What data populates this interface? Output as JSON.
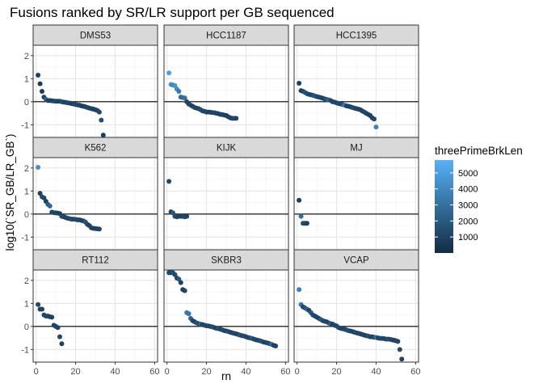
{
  "chart_data": {
    "type": "scatter",
    "title": "Fusions ranked by SR/LR support per GB sequenced",
    "xlabel": "rn",
    "ylabel": "log10(`SR_GB/LR_GB`)",
    "xlim": [
      -1.5,
      61.5
    ],
    "ylim": [
      -1.55,
      2.45
    ],
    "x_ticks": [
      0,
      20,
      40,
      60
    ],
    "y_ticks": [
      -1,
      0,
      1,
      2
    ],
    "hline": 0,
    "grid": true,
    "legend": {
      "title": "threePrimeBrkLen",
      "position": "right",
      "min": 0,
      "max": 5800,
      "breaks": [
        1000,
        2000,
        3000,
        4000,
        5000
      ],
      "color_low": "#132B43",
      "color_high": "#56B1F7"
    },
    "facets": [
      {
        "name": "DMS53",
        "x": [
          1,
          2,
          3,
          4,
          5,
          6,
          7,
          8,
          9,
          10,
          11,
          12,
          13,
          14,
          15,
          16,
          17,
          18,
          19,
          20,
          21,
          22,
          23,
          24,
          25,
          26,
          27,
          28,
          29,
          30,
          31,
          32,
          33,
          34
        ],
        "y": [
          1.15,
          0.78,
          0.45,
          0.2,
          0.1,
          0.05,
          0.05,
          0.04,
          0.03,
          0.02,
          0.02,
          0.02,
          0.0,
          -0.02,
          -0.03,
          -0.05,
          -0.06,
          -0.08,
          -0.1,
          -0.12,
          -0.14,
          -0.15,
          -0.18,
          -0.2,
          -0.22,
          -0.25,
          -0.28,
          -0.3,
          -0.32,
          -0.35,
          -0.38,
          -0.45,
          -0.8,
          -1.45
        ],
        "c": [
          900,
          700,
          800,
          1000,
          2500,
          1100,
          900,
          1000,
          1200,
          1300,
          900,
          1000,
          1500,
          1100,
          1000,
          1200,
          1100,
          900,
          1000,
          1200,
          1300,
          1000,
          1100,
          900,
          1000,
          1200,
          1100,
          1000,
          900,
          1000,
          1100,
          1300,
          1500,
          900
        ]
      },
      {
        "name": "HCC1187",
        "x": [
          1,
          2,
          3,
          4,
          5,
          6,
          7,
          8,
          9,
          10,
          11,
          12,
          13,
          14,
          15,
          16,
          17,
          18,
          19,
          20,
          21,
          22,
          23,
          24,
          25,
          26,
          27,
          28,
          29,
          30,
          31,
          32,
          33,
          34,
          35
        ],
        "y": [
          1.25,
          0.75,
          0.72,
          0.7,
          0.55,
          0.45,
          0.2,
          0.18,
          0.16,
          0.0,
          -0.1,
          -0.15,
          -0.2,
          -0.25,
          -0.28,
          -0.3,
          -0.35,
          -0.4,
          -0.42,
          -0.45,
          -0.45,
          -0.46,
          -0.47,
          -0.48,
          -0.5,
          -0.52,
          -0.55,
          -0.56,
          -0.58,
          -0.6,
          -0.65,
          -0.7,
          -0.72,
          -0.72,
          -0.72
        ],
        "c": [
          5000,
          4600,
          3800,
          4500,
          4200,
          3500,
          2700,
          2800,
          3000,
          1100,
          1000,
          1300,
          900,
          1200,
          1000,
          1100,
          1500,
          1300,
          1000,
          1200,
          900,
          1000,
          1100,
          1300,
          1000,
          1200,
          900,
          1100,
          1000,
          900,
          1000,
          1100,
          1000,
          1200,
          1000
        ]
      },
      {
        "name": "HCC1395",
        "x": [
          1,
          2,
          3,
          4,
          5,
          6,
          7,
          8,
          9,
          10,
          11,
          12,
          13,
          14,
          15,
          16,
          17,
          18,
          19,
          20,
          21,
          22,
          23,
          24,
          25,
          26,
          27,
          28,
          29,
          30,
          31,
          32,
          33,
          34,
          35,
          36,
          37,
          38,
          39,
          40
        ],
        "y": [
          0.8,
          0.48,
          0.45,
          0.4,
          0.35,
          0.32,
          0.3,
          0.28,
          0.25,
          0.22,
          0.2,
          0.18,
          0.15,
          0.12,
          0.1,
          0.08,
          0.05,
          0.0,
          -0.02,
          -0.05,
          -0.08,
          -0.1,
          -0.12,
          -0.15,
          -0.18,
          -0.2,
          -0.22,
          -0.25,
          -0.28,
          -0.3,
          -0.32,
          -0.35,
          -0.4,
          -0.45,
          -0.5,
          -0.55,
          -0.6,
          -0.7,
          -0.75,
          -1.1
        ],
        "c": [
          900,
          1000,
          1200,
          1800,
          1500,
          1300,
          1000,
          1200,
          2000,
          1500,
          1100,
          1300,
          1000,
          1200,
          1800,
          2500,
          1300,
          1000,
          1200,
          1100,
          1300,
          1000,
          1500,
          3500,
          1200,
          1000,
          1100,
          1300,
          1500,
          1000,
          1200,
          1100,
          1000,
          1300,
          1000,
          1100,
          900,
          1000,
          1200,
          3800
        ]
      },
      {
        "name": "K562",
        "x": [
          1,
          2,
          3,
          4,
          5,
          6,
          7,
          8,
          9,
          10,
          11,
          12,
          13,
          14,
          15,
          16,
          17,
          18,
          19,
          20,
          21,
          22,
          23,
          24,
          25,
          26,
          27,
          28,
          29,
          30,
          31,
          32
        ],
        "y": [
          2.03,
          0.9,
          0.75,
          0.7,
          0.55,
          0.42,
          0.35,
          0.08,
          0.06,
          0.05,
          0.04,
          0.02,
          -0.1,
          -0.12,
          -0.15,
          -0.18,
          -0.2,
          -0.22,
          -0.22,
          -0.23,
          -0.25,
          -0.25,
          -0.28,
          -0.3,
          -0.35,
          -0.45,
          -0.5,
          -0.6,
          -0.62,
          -0.63,
          -0.64,
          -0.65
        ],
        "c": [
          4300,
          900,
          1500,
          1200,
          1000,
          2000,
          2500,
          1000,
          1200,
          1100,
          1000,
          900,
          1200,
          1300,
          1000,
          1100,
          1200,
          1300,
          1000,
          1500,
          1200,
          1300,
          1000,
          1100,
          1800,
          1200,
          1000,
          1100,
          1000,
          900,
          1000,
          1100
        ]
      },
      {
        "name": "KIJK",
        "x": [
          1,
          2,
          3,
          4,
          5,
          6,
          7,
          8,
          9,
          10
        ],
        "y": [
          1.42,
          0.1,
          0.05,
          -0.1,
          -0.12,
          -0.1,
          -0.1,
          -0.1,
          -0.12,
          -0.1
        ],
        "c": [
          1300,
          1200,
          1800,
          1500,
          1300,
          1100,
          1000,
          1200,
          1300,
          1000
        ]
      },
      {
        "name": "MJ",
        "x": [
          1,
          2,
          3,
          4,
          5
        ],
        "y": [
          0.6,
          -0.1,
          -0.4,
          -0.4,
          -0.4
        ],
        "c": [
          900,
          2800,
          1500,
          1200,
          1000
        ]
      },
      {
        "name": "RT112",
        "x": [
          1,
          2,
          3,
          4,
          5,
          6,
          7,
          8,
          9,
          10,
          11,
          12,
          13
        ],
        "y": [
          0.95,
          0.75,
          0.75,
          0.5,
          0.45,
          0.45,
          0.42,
          0.4,
          0.05,
          0.0,
          -0.05,
          -0.45,
          -0.75
        ],
        "c": [
          1300,
          900,
          1000,
          1200,
          1100,
          1200,
          900,
          1000,
          1200,
          1000,
          1100,
          1300,
          1000
        ]
      },
      {
        "name": "SKBR3",
        "x": [
          1,
          2,
          3,
          4,
          5,
          6,
          7,
          8,
          9,
          10,
          11,
          12,
          13,
          14,
          15,
          16,
          17,
          18,
          19,
          20,
          21,
          22,
          23,
          24,
          25,
          26,
          27,
          28,
          29,
          30,
          31,
          32,
          33,
          34,
          35,
          36,
          37,
          38,
          39,
          40,
          41,
          42,
          43,
          44,
          45,
          46,
          47,
          48,
          49,
          50,
          51,
          52,
          53,
          54,
          55
        ],
        "y": [
          2.33,
          2.33,
          2.33,
          2.25,
          2.1,
          2.05,
          1.9,
          1.6,
          1.55,
          0.6,
          0.55,
          0.35,
          0.25,
          0.2,
          0.15,
          0.12,
          0.1,
          0.08,
          0.05,
          0.03,
          0.02,
          0.0,
          -0.02,
          -0.05,
          -0.08,
          -0.1,
          -0.12,
          -0.15,
          -0.18,
          -0.2,
          -0.22,
          -0.25,
          -0.28,
          -0.3,
          -0.32,
          -0.35,
          -0.38,
          -0.4,
          -0.42,
          -0.45,
          -0.48,
          -0.5,
          -0.52,
          -0.55,
          -0.58,
          -0.6,
          -0.62,
          -0.65,
          -0.68,
          -0.7,
          -0.72,
          -0.75,
          -0.78,
          -0.82,
          -0.85
        ],
        "c": [
          1200,
          1000,
          1500,
          1300,
          1100,
          1800,
          1000,
          900,
          1200,
          3500,
          3200,
          2500,
          1200,
          1000,
          1800,
          1300,
          2500,
          1000,
          1200,
          1100,
          1300,
          1000,
          1500,
          1200,
          1000,
          1800,
          1100,
          1300,
          1200,
          1000,
          1500,
          1100,
          1000,
          1300,
          1200,
          1000,
          1800,
          1100,
          1500,
          1200,
          1000,
          1300,
          2000,
          1100,
          1200,
          1000,
          1300,
          1500,
          1100,
          1000,
          1200,
          1300,
          2800,
          1100,
          1000
        ]
      },
      {
        "name": "VCAP",
        "x": [
          1,
          2,
          3,
          4,
          5,
          6,
          7,
          8,
          9,
          10,
          11,
          12,
          13,
          14,
          15,
          16,
          17,
          18,
          19,
          20,
          21,
          22,
          23,
          24,
          25,
          26,
          27,
          28,
          29,
          30,
          31,
          32,
          33,
          34,
          35,
          36,
          37,
          38,
          39,
          40,
          41,
          42,
          43,
          44,
          45,
          46,
          47,
          48,
          49,
          50,
          51,
          52,
          53
        ],
        "y": [
          1.6,
          0.95,
          0.85,
          0.8,
          0.75,
          0.7,
          0.6,
          0.5,
          0.45,
          0.4,
          0.35,
          0.3,
          0.25,
          0.22,
          0.2,
          0.15,
          0.12,
          0.1,
          0.05,
          0.02,
          -0.05,
          -0.08,
          -0.1,
          -0.12,
          -0.15,
          -0.18,
          -0.2,
          -0.22,
          -0.25,
          -0.28,
          -0.3,
          -0.32,
          -0.35,
          -0.38,
          -0.4,
          -0.42,
          -0.45,
          -0.45,
          -0.47,
          -0.48,
          -0.5,
          -0.52,
          -0.52,
          -0.53,
          -0.55,
          -0.55,
          -0.56,
          -0.58,
          -0.6,
          -0.62,
          -0.65,
          -1.0,
          -1.42
        ],
        "c": [
          3700,
          3300,
          1200,
          1500,
          2500,
          1000,
          1800,
          1300,
          1100,
          1200,
          1000,
          2000,
          1500,
          1200,
          1100,
          1300,
          2200,
          1000,
          1200,
          1300,
          1500,
          1100,
          1000,
          1200,
          1300,
          1800,
          1000,
          1100,
          1200,
          1500,
          1000,
          1300,
          1100,
          1200,
          1000,
          1500,
          1300,
          1100,
          1200,
          3000,
          1000,
          1300,
          1200,
          1100,
          1000,
          1500,
          1200,
          1300,
          1000,
          1100,
          1200,
          1300,
          1000
        ]
      }
    ]
  }
}
